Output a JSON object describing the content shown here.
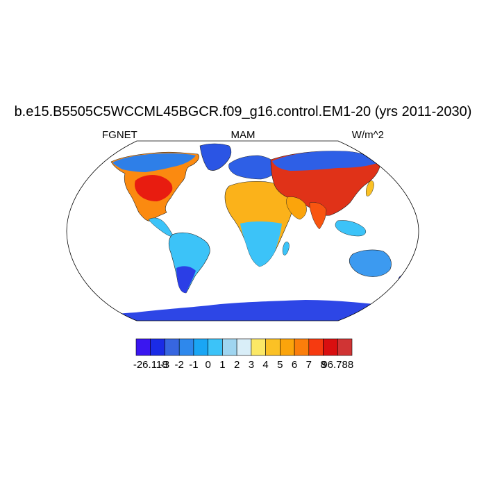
{
  "title": "b.e15.B5505C5WCCML45BGCR.f09_g16.control.EM1-20 (yrs 2011-2030)",
  "subtitle_left": "FGNET",
  "subtitle_center": "MAM",
  "subtitle_right": "W/m^2",
  "colorbar": {
    "colors": [
      "#3a16f0",
      "#1a2be6",
      "#3766e0",
      "#2e88ec",
      "#1aa6f4",
      "#3cc3f8",
      "#9fd5f0",
      "#d9eef8",
      "#fbe866",
      "#fbc125",
      "#fba40b",
      "#fb7e0b",
      "#f63a10",
      "#d90f10",
      "#d03434"
    ],
    "labels": [
      "-26.118",
      "-3",
      "-2",
      "-1",
      "0",
      "1",
      "2",
      "3",
      "4",
      "5",
      "6",
      "7",
      "8",
      "96.788"
    ]
  }
}
